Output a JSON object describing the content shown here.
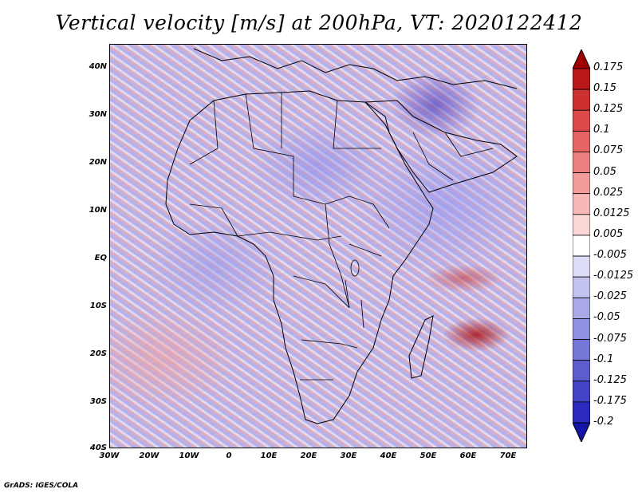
{
  "title": "Vertical velocity [m/s] at 200hPa, VT: 2020122412",
  "latitude_labels": [
    "40N",
    "30N",
    "20N",
    "10N",
    "EQ",
    "10S",
    "20S",
    "30S",
    "40S"
  ],
  "longitude_labels": [
    "30W",
    "20W",
    "10W",
    "0",
    "10E",
    "20E",
    "30E",
    "40E",
    "50E",
    "60E",
    "70E"
  ],
  "colorbar": {
    "levels": [
      "0.175",
      "0.15",
      "0.125",
      "0.1",
      "0.075",
      "0.05",
      "0.025",
      "0.0125",
      "0.005",
      "-0.005",
      "-0.0125",
      "-0.025",
      "-0.05",
      "-0.075",
      "-0.1",
      "-0.125",
      "-0.175",
      "-0.2"
    ],
    "colors": [
      "#a00000",
      "#b81818",
      "#cc3030",
      "#dc4a4a",
      "#e66464",
      "#ec8080",
      "#f29c9c",
      "#f7b8b8",
      "#fbd6d6",
      "#ffffff",
      "#dcdcf6",
      "#c3c3ef",
      "#a9a9e8",
      "#9090e0",
      "#7777d8",
      "#5d5dd0",
      "#4444c8",
      "#2a2ac0",
      "#1414a8"
    ]
  },
  "credit": "GrADS: IGES/COLA"
}
